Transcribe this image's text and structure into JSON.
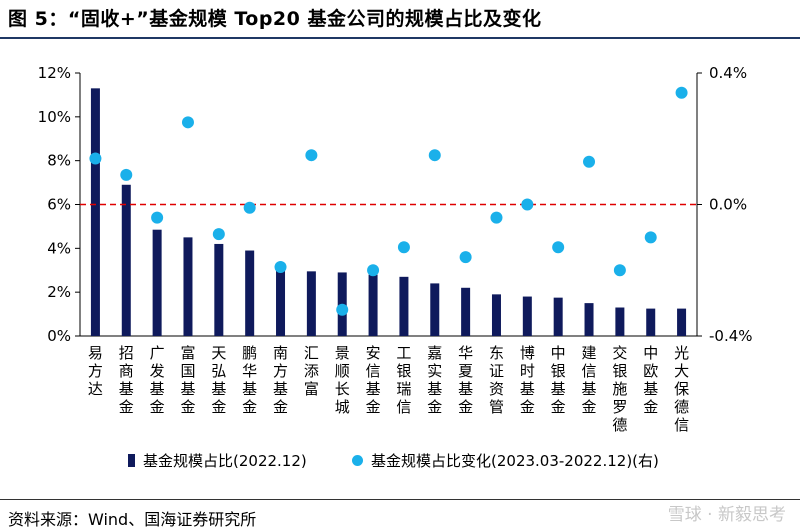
{
  "figure_title": "图 5：“固收+”基金规模 Top20 基金公司的规模占比及变化",
  "source_text": "资料来源：Wind、国海证券研究所",
  "watermark_text": "雪球 · 新毅思考",
  "colors": {
    "bar": "#0f1a5c",
    "dot": "#1ab0ea",
    "zero_line": "#e00000",
    "title_rule": "#1f3864"
  },
  "chart_data": {
    "type": "bar",
    "categories": [
      "易方达",
      "招商基金",
      "广发基金",
      "富国基金",
      "天弘基金",
      "鹏华基金",
      "南方基金",
      "汇添富",
      "景顺长城",
      "安信基金",
      "工银瑞信",
      "嘉实基金",
      "华夏基金",
      "东证资管",
      "博时基金",
      "中银基金",
      "建信基金",
      "交银施罗德",
      "中欧基金",
      "光大保德信"
    ],
    "series": [
      {
        "name": "基金规模占比(2022.12)",
        "axis": "left",
        "kind": "bar",
        "values": [
          11.3,
          6.9,
          4.85,
          4.5,
          4.2,
          3.9,
          3.3,
          2.95,
          2.9,
          2.8,
          2.7,
          2.4,
          2.2,
          1.9,
          1.8,
          1.75,
          1.5,
          1.3,
          1.25,
          1.25
        ]
      },
      {
        "name": "基金规模占比变化(2023.03-2022.12)(右)",
        "axis": "right",
        "kind": "scatter",
        "values": [
          0.14,
          0.09,
          -0.04,
          0.25,
          -0.09,
          -0.01,
          -0.19,
          0.15,
          -0.32,
          -0.2,
          -0.13,
          0.15,
          -0.16,
          -0.04,
          0.0,
          -0.13,
          0.13,
          -0.2,
          -0.1,
          0.34
        ]
      }
    ],
    "y_left": {
      "min": 0,
      "max": 12,
      "ticks": [
        "0%",
        "2%",
        "4%",
        "6%",
        "8%",
        "10%",
        "12%"
      ]
    },
    "y_right": {
      "min": -0.4,
      "max": 0.4,
      "ticks": [
        "-0.4%",
        "0.0%",
        "0.4%"
      ]
    },
    "reference_line": {
      "axis": "right",
      "value": 0.0,
      "style": "dashed"
    },
    "grid": false,
    "legend_position": "bottom"
  }
}
